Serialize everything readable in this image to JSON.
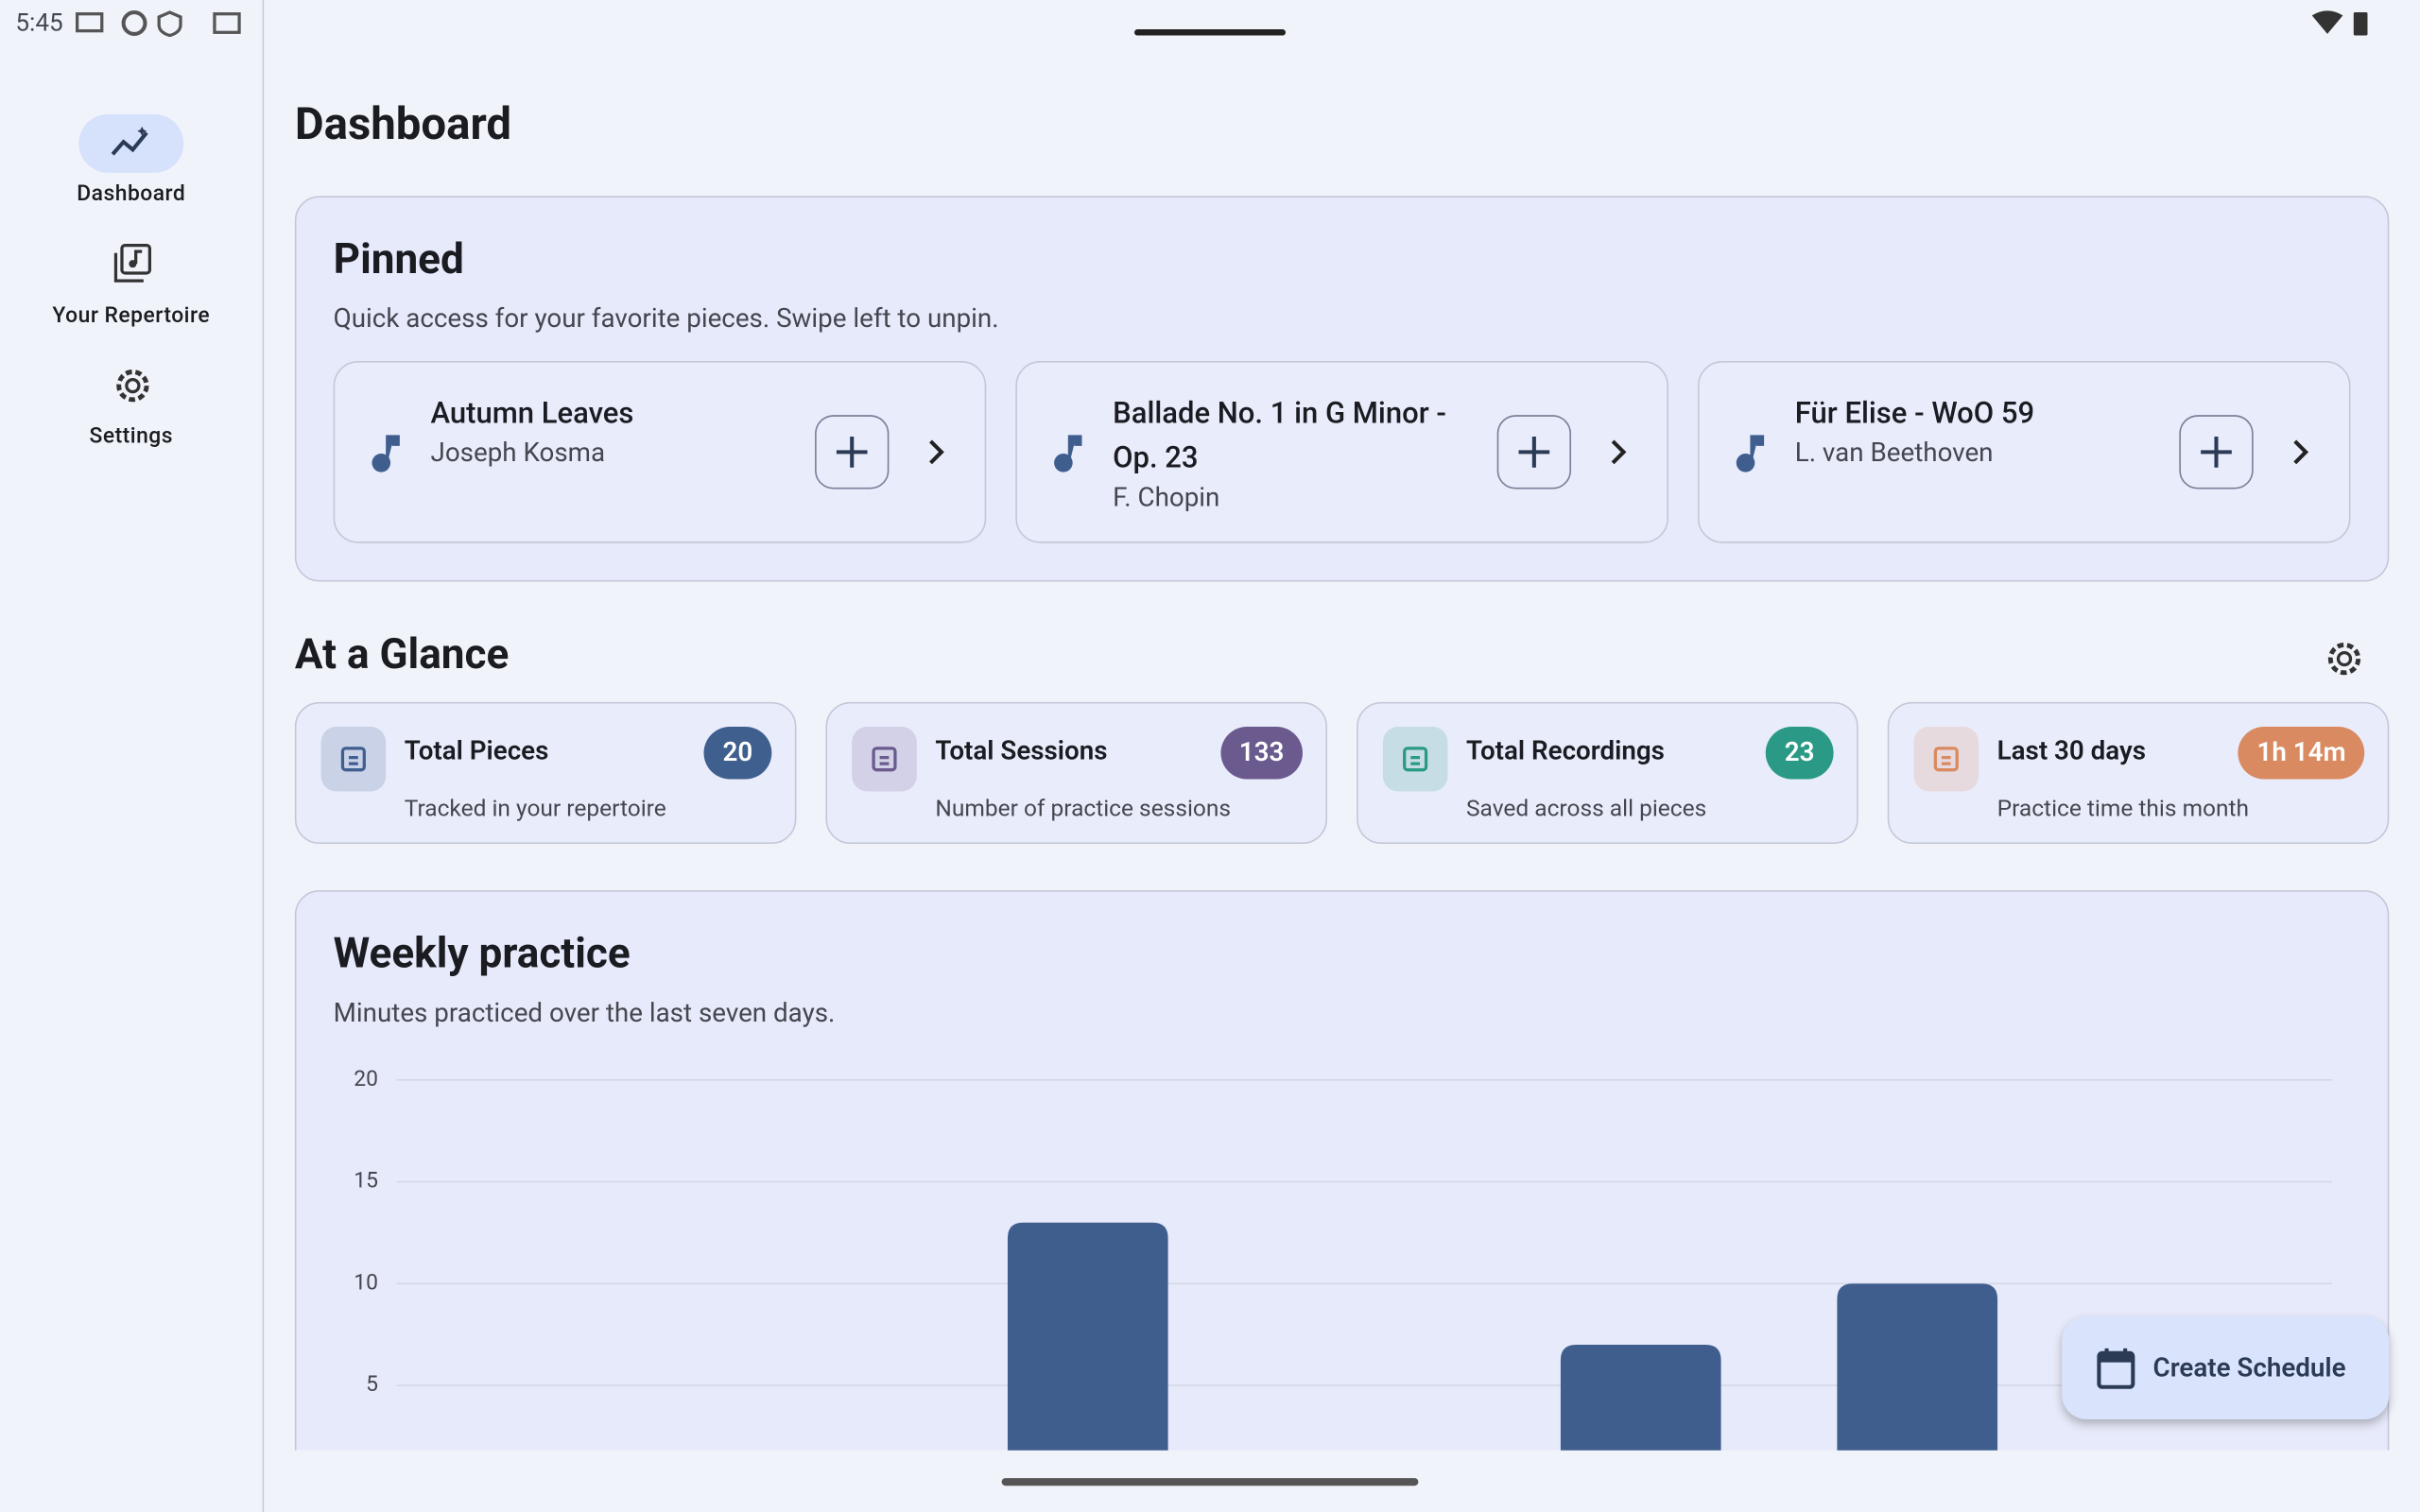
{
  "status": {
    "time": "5:45"
  },
  "nav": {
    "items": [
      "Dashboard",
      "Your Repertoire",
      "Settings"
    ]
  },
  "header": {
    "title": "Dashboard"
  },
  "pinned": {
    "title": "Pinned",
    "subtitle": "Quick access for your favorite pieces. Swipe left to unpin.",
    "items": [
      {
        "title": "Autumn Leaves",
        "composer": "Joseph Kosma"
      },
      {
        "title": "Ballade No. 1 in G Minor - Op. 23",
        "composer": "F. Chopin"
      },
      {
        "title": "Für Elise - WoO 59",
        "composer": "L. van Beethoven"
      }
    ]
  },
  "glance": {
    "title": "At a Glance",
    "stats": [
      {
        "title": "Total Pieces",
        "value": 20,
        "subtitle": "Tracked in your repertoire",
        "color": "#3f5f8e"
      },
      {
        "title": "Total Sessions",
        "value": 133,
        "subtitle": "Number of practice sessions",
        "color": "#6a5a8e"
      },
      {
        "title": "Total Recordings",
        "value": 23,
        "subtitle": "Saved across all pieces",
        "color": "#2a9a86"
      },
      {
        "title": "Last 30 days",
        "value": "1h 14m",
        "subtitle": "Practice time this month",
        "color": "#d98a60"
      }
    ]
  },
  "chart_data": {
    "type": "bar",
    "title": "Weekly practice",
    "subtitle": "Minutes practiced over the last seven days.",
    "categories": [
      null,
      null,
      null,
      null,
      null,
      null,
      null
    ],
    "values": [
      0,
      0,
      13,
      0,
      7,
      10,
      0
    ],
    "color": "#3f5e8e",
    "ylim": [
      0,
      20
    ],
    "yticks": [
      5,
      10,
      15,
      20
    ],
    "grid": true
  },
  "fab": {
    "label": "Create Schedule"
  }
}
